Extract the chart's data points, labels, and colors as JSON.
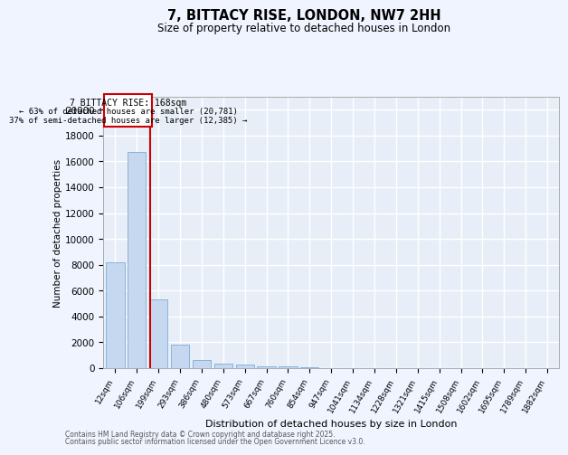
{
  "title_line1": "7, BITTACY RISE, LONDON, NW7 2HH",
  "title_line2": "Size of property relative to detached houses in London",
  "xlabel": "Distribution of detached houses by size in London",
  "ylabel": "Number of detached properties",
  "bar_color": "#c5d8f0",
  "bar_edge_color": "#7aadd4",
  "background_color": "#e8eef8",
  "grid_color": "#ffffff",
  "annotation_box_color": "#cc0000",
  "property_line_color": "#cc0000",
  "categories": [
    "12sqm",
    "106sqm",
    "199sqm",
    "293sqm",
    "386sqm",
    "480sqm",
    "573sqm",
    "667sqm",
    "760sqm",
    "854sqm",
    "947sqm",
    "1041sqm",
    "1134sqm",
    "1228sqm",
    "1321sqm",
    "1415sqm",
    "1508sqm",
    "1602sqm",
    "1695sqm",
    "1789sqm",
    "1882sqm"
  ],
  "values": [
    8200,
    16700,
    5300,
    1850,
    650,
    350,
    250,
    175,
    125,
    60,
    0,
    0,
    0,
    0,
    0,
    0,
    0,
    0,
    0,
    0,
    0
  ],
  "property_line_x": 1.63,
  "annotation_text_line1": "7 BITTACY RISE: 168sqm",
  "annotation_text_line2": "← 63% of detached houses are smaller (20,781)",
  "annotation_text_line3": "37% of semi-detached houses are larger (12,385) →",
  "footer_line1": "Contains HM Land Registry data © Crown copyright and database right 2025.",
  "footer_line2": "Contains public sector information licensed under the Open Government Licence v3.0.",
  "ylim": [
    0,
    21000
  ],
  "yticks": [
    0,
    2000,
    4000,
    6000,
    8000,
    10000,
    12000,
    14000,
    16000,
    18000,
    20000
  ]
}
